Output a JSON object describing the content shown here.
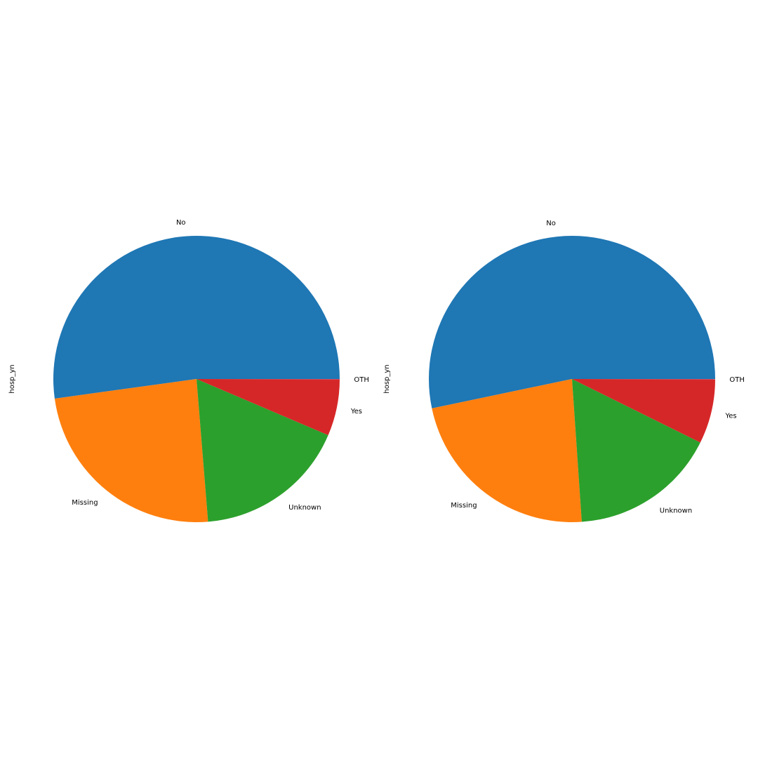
{
  "chart_data": [
    {
      "type": "pie",
      "ylabel": "hosp_yn",
      "start_angle_deg": 0,
      "direction": "counterclockwise",
      "slices": [
        {
          "label": "No",
          "value": 52.2,
          "color": "#1f77b4"
        },
        {
          "label": "Missing",
          "value": 24.1,
          "color": "#ff7f0e"
        },
        {
          "label": "Unknown",
          "value": 17.3,
          "color": "#2ca02c"
        },
        {
          "label": "Yes",
          "value": 6.4,
          "color": "#d62728"
        },
        {
          "label": "OTH",
          "value": 0.02,
          "color": "#9467bd"
        }
      ]
    },
    {
      "type": "pie",
      "ylabel": "hosp_yn",
      "start_angle_deg": 0,
      "direction": "counterclockwise",
      "slices": [
        {
          "label": "No",
          "value": 53.3,
          "color": "#1f77b4"
        },
        {
          "label": "Missing",
          "value": 22.8,
          "color": "#ff7f0e"
        },
        {
          "label": "Unknown",
          "value": 16.6,
          "color": "#2ca02c"
        },
        {
          "label": "Yes",
          "value": 7.3,
          "color": "#d62728"
        },
        {
          "label": "OTH",
          "value": 0.02,
          "color": "#9467bd"
        }
      ]
    }
  ]
}
